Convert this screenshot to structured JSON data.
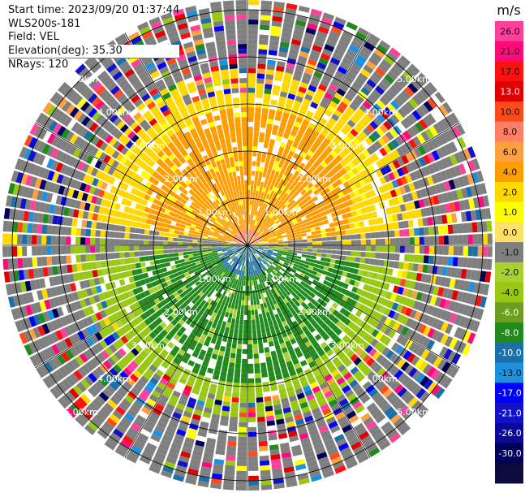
{
  "header": {
    "start_time": "Start time: 2023/09/20 01:37:44",
    "instrument": "WLS200s-181",
    "field": "Field: VEL",
    "elevation": "Elevation(deg): 35.30",
    "nrays": "NRays: 120"
  },
  "range_labels": [
    "1.00km",
    "2.00km",
    "3.00km",
    "4.00km",
    "5.00km"
  ],
  "colorbar": {
    "unit": "m/s",
    "ticks": [
      "26.0",
      "21.0",
      "17.0",
      "13.0",
      "10.0",
      "8.0",
      "6.0",
      "4.0",
      "2.0",
      "1.0",
      "0.0",
      "-1.0",
      "-2.0",
      "-4.0",
      "-6.0",
      "-8.0",
      "-10.0",
      "-13.0",
      "-17.0",
      "-21.0",
      "-26.0",
      "-30.0"
    ],
    "colors": [
      "#ff3f9c",
      "#ff0a7a",
      "#ff1010",
      "#e00000",
      "#ff4a1a",
      "#ff7f66",
      "#ffa040",
      "#ff9c00",
      "#ffd800",
      "#ffff00",
      "#ffe066",
      "#7f7f7f",
      "#a8d030",
      "#98c814",
      "#6b9e21",
      "#218a1c",
      "#1c70a8",
      "#1e90e0",
      "#0000ff",
      "#1212c8",
      "#0a0a96",
      "#00005a",
      "#0b0b3e"
    ]
  }
}
